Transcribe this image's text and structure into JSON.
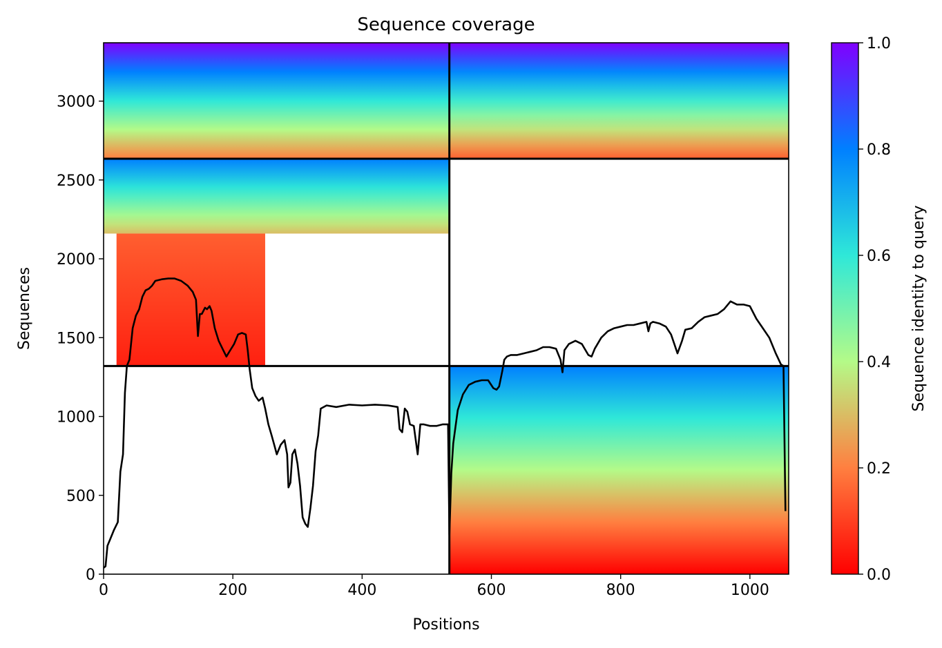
{
  "chart_data": {
    "type": "heatmap",
    "title": "Sequence coverage",
    "xlabel": "Positions",
    "ylabel": "Sequences",
    "xlim": [
      0,
      1060
    ],
    "ylim": [
      0,
      3370
    ],
    "xticks": [
      0,
      200,
      400,
      600,
      800,
      1000
    ],
    "yticks": [
      0,
      500,
      1000,
      1500,
      2000,
      2500,
      3000
    ],
    "colorbar": {
      "label": "Sequence identity to query",
      "range": [
        0,
        1
      ],
      "ticks": [
        "0.0",
        "0.2",
        "0.4",
        "0.6",
        "0.8",
        "1.0"
      ],
      "colormap": "rainbow",
      "colors": [
        "#ff0000",
        "#ff7f40",
        "#b4fa88",
        "#2fe8d8",
        "#0080ff",
        "#8000ff"
      ]
    },
    "block_boundaries": {
      "positions": [
        535
      ],
      "sequences": [
        1320,
        2635
      ]
    },
    "coverage_blocks": [
      {
        "x": [
          0,
          535
        ],
        "y": [
          2635,
          3370
        ],
        "identity_top": 1.0,
        "identity_bottom": 0.2
      },
      {
        "x": [
          535,
          1060
        ],
        "y": [
          2635,
          3370
        ],
        "identity_top": 1.0,
        "identity_bottom": 0.15
      },
      {
        "x": [
          0,
          535
        ],
        "y": [
          2160,
          2635
        ],
        "identity_top": 0.8,
        "identity_bottom": 0.3
      },
      {
        "x": [
          20,
          250
        ],
        "y": [
          1320,
          2160
        ],
        "identity_top": 0.15,
        "identity_bottom": 0.05
      },
      {
        "x": [
          535,
          1060
        ],
        "y": [
          0,
          1320
        ],
        "identity_top": 0.8,
        "identity_bottom": 0.0
      }
    ],
    "coverage_line": {
      "color": "#000000",
      "x": [
        0,
        3,
        6,
        10,
        16,
        22,
        26,
        30,
        33,
        36,
        40,
        45,
        50,
        55,
        60,
        65,
        70,
        75,
        80,
        90,
        100,
        110,
        120,
        130,
        138,
        143,
        146,
        149,
        152,
        157,
        160,
        164,
        167,
        172,
        178,
        184,
        190,
        196,
        202,
        208,
        214,
        220,
        223,
        226,
        230,
        235,
        240,
        246,
        250,
        255,
        260,
        264,
        268,
        274,
        280,
        284,
        286,
        289,
        292,
        296,
        300,
        304,
        308,
        312,
        316,
        320,
        324,
        328,
        332,
        336,
        345,
        360,
        380,
        400,
        420,
        440,
        455,
        458,
        462,
        466,
        470,
        474,
        480,
        486,
        490,
        495,
        505,
        515,
        525,
        530,
        533,
        535,
        538,
        541,
        548,
        556,
        565,
        575,
        585,
        595,
        603,
        608,
        612,
        617,
        620,
        624,
        630,
        640,
        650,
        660,
        670,
        680,
        690,
        700,
        707,
        710,
        713,
        720,
        730,
        740,
        750,
        755,
        760,
        770,
        780,
        790,
        800,
        810,
        820,
        830,
        840,
        843,
        846,
        850,
        860,
        870,
        878,
        883,
        888,
        895,
        900,
        910,
        920,
        930,
        940,
        950,
        960,
        970,
        980,
        990,
        1000,
        1010,
        1020,
        1030,
        1040,
        1048,
        1052,
        1055,
        1058,
        1060
      ],
      "y": [
        40,
        50,
        180,
        220,
        280,
        330,
        650,
        760,
        1150,
        1320,
        1360,
        1560,
        1640,
        1680,
        1760,
        1800,
        1810,
        1830,
        1860,
        1870,
        1875,
        1875,
        1860,
        1830,
        1790,
        1740,
        1510,
        1650,
        1650,
        1690,
        1680,
        1700,
        1670,
        1560,
        1480,
        1430,
        1380,
        1420,
        1460,
        1520,
        1530,
        1520,
        1420,
        1300,
        1180,
        1130,
        1100,
        1120,
        1050,
        950,
        880,
        820,
        760,
        820,
        850,
        760,
        550,
        580,
        760,
        790,
        700,
        560,
        360,
        320,
        300,
        420,
        560,
        780,
        880,
        1050,
        1070,
        1060,
        1075,
        1070,
        1075,
        1070,
        1060,
        920,
        900,
        1050,
        1030,
        950,
        940,
        760,
        950,
        950,
        940,
        940,
        950,
        950,
        950,
        250,
        640,
        830,
        1040,
        1140,
        1200,
        1220,
        1230,
        1230,
        1180,
        1170,
        1190,
        1290,
        1360,
        1380,
        1390,
        1390,
        1400,
        1410,
        1420,
        1440,
        1440,
        1430,
        1360,
        1280,
        1420,
        1460,
        1480,
        1460,
        1390,
        1380,
        1430,
        1500,
        1540,
        1560,
        1570,
        1580,
        1580,
        1590,
        1600,
        1540,
        1590,
        1600,
        1590,
        1570,
        1520,
        1460,
        1400,
        1480,
        1550,
        1560,
        1600,
        1630,
        1640,
        1650,
        1680,
        1730,
        1710,
        1710,
        1700,
        1620,
        1560,
        1500,
        1400,
        1330,
        1320,
        400
      ]
    }
  }
}
